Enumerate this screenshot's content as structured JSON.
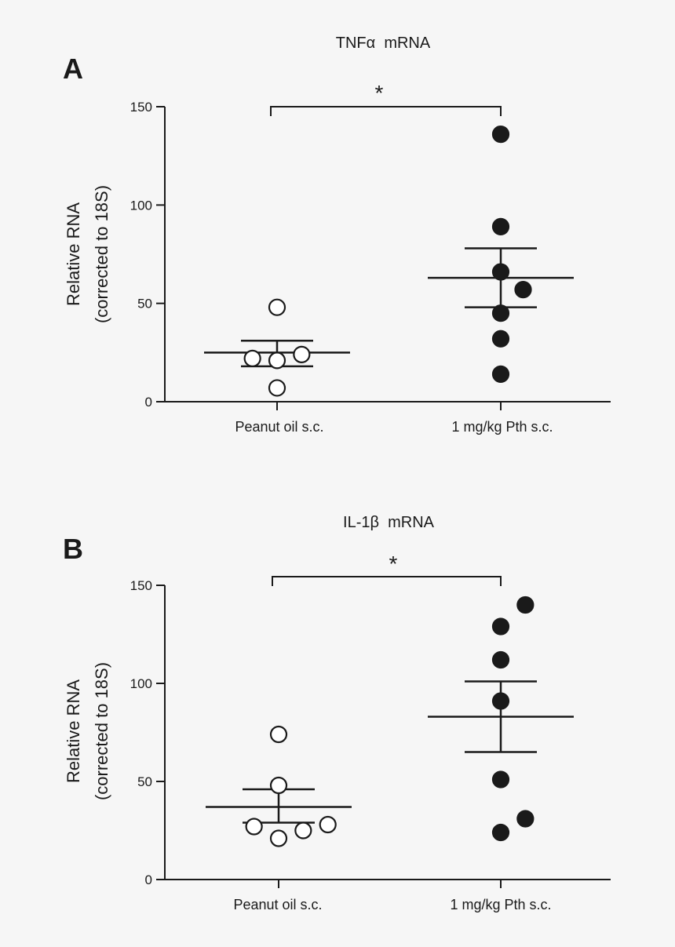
{
  "chart_data": [
    {
      "type": "scatter",
      "panel": "A",
      "title": "TNFα  mRNA",
      "ylabel_line1": "Relative RNA",
      "ylabel_line2": "(corrected to 18S)",
      "ylim": [
        0,
        150
      ],
      "yticks": [
        0,
        50,
        100,
        150
      ],
      "categories": [
        "Peanut oil s.c.",
        "1 mg/kg Pth s.c."
      ],
      "significance": "*",
      "groups": [
        {
          "name": "Peanut oil s.c.",
          "filled": false,
          "points": [
            {
              "offset": 0,
              "value": 48
            },
            {
              "offset": -0.11,
              "value": 22
            },
            {
              "offset": 0,
              "value": 21
            },
            {
              "offset": 0.11,
              "value": 24
            },
            {
              "offset": 0,
              "value": 7
            }
          ],
          "mean": 25,
          "sem_low": 18,
          "sem_high": 31
        },
        {
          "name": "1 mg/kg Pth s.c.",
          "filled": true,
          "points": [
            {
              "offset": 0,
              "value": 136
            },
            {
              "offset": 0,
              "value": 89
            },
            {
              "offset": 0,
              "value": 66
            },
            {
              "offset": 0.1,
              "value": 57
            },
            {
              "offset": 0,
              "value": 45
            },
            {
              "offset": 0,
              "value": 32
            },
            {
              "offset": 0,
              "value": 14
            }
          ],
          "mean": 63,
          "sem_low": 48,
          "sem_high": 78
        }
      ]
    },
    {
      "type": "scatter",
      "panel": "B",
      "title": "IL-1β  mRNA",
      "ylabel_line1": "Relative RNA",
      "ylabel_line2": "(corrected to 18S)",
      "ylim": [
        0,
        150
      ],
      "yticks": [
        0,
        50,
        100,
        150
      ],
      "categories": [
        "Peanut oil s.c.",
        "1 mg/kg Pth s.c."
      ],
      "significance": "*",
      "groups": [
        {
          "name": "Peanut oil s.c.",
          "filled": false,
          "points": [
            {
              "offset": 0,
              "value": 74
            },
            {
              "offset": 0,
              "value": 48
            },
            {
              "offset": -0.11,
              "value": 27
            },
            {
              "offset": 0.11,
              "value": 25
            },
            {
              "offset": 0.22,
              "value": 28
            },
            {
              "offset": 0,
              "value": 21
            }
          ],
          "mean": 37,
          "sem_low": 29,
          "sem_high": 46
        },
        {
          "name": "1 mg/kg Pth s.c.",
          "filled": true,
          "points": [
            {
              "offset": 0.11,
              "value": 140
            },
            {
              "offset": 0,
              "value": 129
            },
            {
              "offset": 0,
              "value": 112
            },
            {
              "offset": 0,
              "value": 91
            },
            {
              "offset": 0,
              "value": 51
            },
            {
              "offset": 0.11,
              "value": 31
            },
            {
              "offset": 0,
              "value": 24
            }
          ],
          "mean": 83,
          "sem_low": 65,
          "sem_high": 101
        }
      ]
    }
  ]
}
